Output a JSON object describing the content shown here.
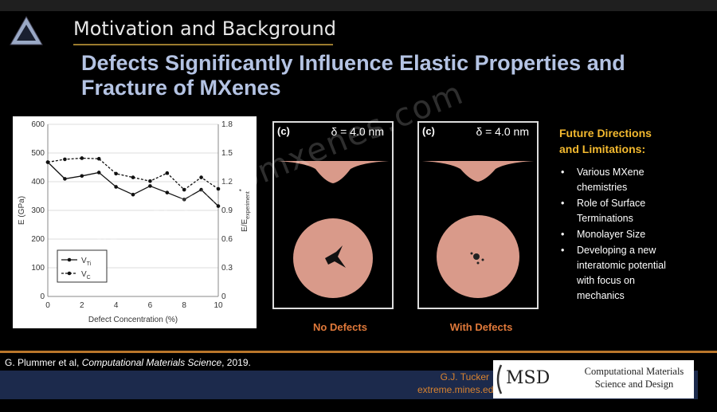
{
  "header": {
    "section_title": "Motivation and Background",
    "main_title": "Defects Significantly Influence Elastic Properties and Fracture of MXenes"
  },
  "chart_data": {
    "type": "line",
    "xlabel": "Defect Concentration (%)",
    "ylabel": "E (GPa)",
    "ylabel_right": "E/E",
    "ylabel_right_sub": "experiment",
    "ylabel_right_sup": "*",
    "xlim": [
      0,
      10
    ],
    "ylim": [
      0,
      600
    ],
    "ylim_right": [
      0,
      1.8
    ],
    "x_ticks": [
      "0",
      "2",
      "4",
      "6",
      "8",
      "10"
    ],
    "y_ticks": [
      "0",
      "100",
      "200",
      "300",
      "400",
      "500",
      "600"
    ],
    "y_right_ticks": [
      "0",
      "0.3",
      "0.6",
      "0.9",
      "1.2",
      "1.5",
      "1.8"
    ],
    "grid": "horizontal",
    "legend_position": "lower-left",
    "series": [
      {
        "name": "V",
        "sub": "Ti",
        "style": "solid",
        "x": [
          0,
          1,
          2,
          3,
          4,
          5,
          6,
          7,
          8,
          9,
          10
        ],
        "values": [
          468,
          410,
          420,
          432,
          382,
          355,
          385,
          362,
          338,
          372,
          315
        ]
      },
      {
        "name": "V",
        "sub": "C",
        "style": "dashed",
        "x": [
          0,
          1,
          2,
          3,
          4,
          5,
          6,
          7,
          8,
          9,
          10
        ],
        "values": [
          468,
          478,
          482,
          480,
          428,
          415,
          402,
          430,
          372,
          415,
          375
        ]
      }
    ]
  },
  "panels": [
    {
      "tag": "(c)",
      "delta": "δ = 4.0 nm",
      "caption": "No Defects"
    },
    {
      "tag": "(c)",
      "delta": "δ = 4.0 nm",
      "caption": "With Defects"
    }
  ],
  "future": {
    "heading_line1": "Future Directions",
    "heading_line2": "and Limitations:",
    "items": [
      "Various MXene chemistries",
      "Role of Surface Terminations",
      "Monolayer Size",
      "Developing a new interatomic potential with focus on mechanics"
    ]
  },
  "footer": {
    "citation_authors": "G. Plummer et al, ",
    "citation_journal": "Computational Materials Science",
    "citation_year": ", 2019.",
    "author": "G.J. Tucker",
    "site": "extreme.mines.edu",
    "logo_text": "MSD",
    "logo_desc": "Computational Materials Science and Design"
  },
  "watermark": "www.nanomxenes.com",
  "colors": {
    "title": "#b4c3e3",
    "accent_orange": "#e0793a",
    "heading_gold": "#f3b92f",
    "footer_navy": "#1c2a4c"
  }
}
